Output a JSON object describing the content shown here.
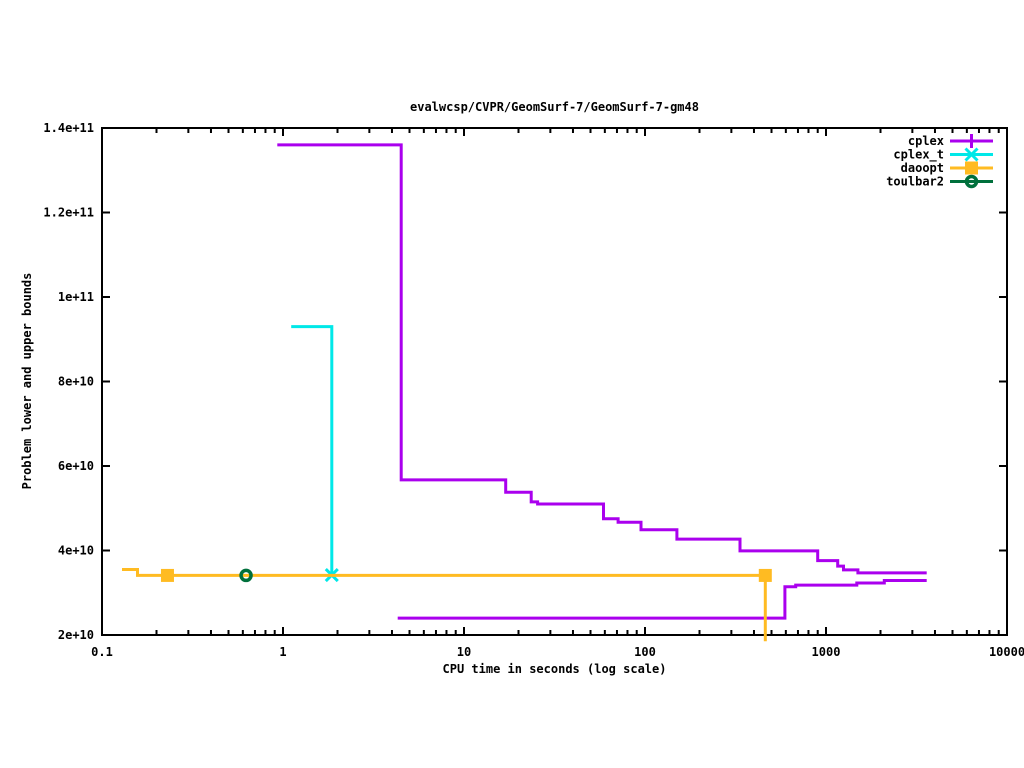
{
  "window": {
    "background": "#ffffff"
  },
  "chart_data": {
    "type": "line",
    "title": "evalwcsp/CVPR/GeomSurf-7/GeomSurf-7-gm48",
    "xlabel": "CPU time in seconds (log scale)",
    "ylabel": "Problem lower and upper bounds",
    "x_scale": "log",
    "xlim": [
      0.1,
      10000
    ],
    "ylim": [
      20000000000.0,
      140000000000.0
    ],
    "grid": false,
    "legend_position": "top-right-inside",
    "x_ticks": [
      {
        "v": 0.1,
        "label": "0.1"
      },
      {
        "v": 1,
        "label": "1"
      },
      {
        "v": 10,
        "label": "10"
      },
      {
        "v": 100,
        "label": "100"
      },
      {
        "v": 1000,
        "label": "1000"
      },
      {
        "v": 10000,
        "label": "10000"
      }
    ],
    "y_ticks": [
      {
        "v": 20000000000.0,
        "label": "2e+10"
      },
      {
        "v": 40000000000.0,
        "label": "4e+10"
      },
      {
        "v": 60000000000.0,
        "label": "6e+10"
      },
      {
        "v": 80000000000.0,
        "label": "8e+10"
      },
      {
        "v": 100000000000.0,
        "label": "1e+11"
      },
      {
        "v": 120000000000.0,
        "label": "1.2e+11"
      },
      {
        "v": 140000000000.0,
        "label": "1.4e+11"
      }
    ],
    "series": [
      {
        "name": "cplex",
        "color": "#aa00ee",
        "marker": "plus",
        "lines": [
          {
            "role": "upper-bound",
            "points": [
              [
                0.93,
                136000000000.0
              ],
              [
                4.5,
                136000000000.0
              ],
              [
                4.5,
                56700000000.0
              ],
              [
                17,
                56700000000.0
              ],
              [
                17,
                53800000000.0
              ],
              [
                23.5,
                53800000000.0
              ],
              [
                23.5,
                51500000000.0
              ],
              [
                25.5,
                51500000000.0
              ],
              [
                25.5,
                51000000000.0
              ],
              [
                59,
                51000000000.0
              ],
              [
                59,
                47500000000.0
              ],
              [
                71,
                47500000000.0
              ],
              [
                71,
                46700000000.0
              ],
              [
                95,
                46700000000.0
              ],
              [
                95,
                44900000000.0
              ],
              [
                150,
                44900000000.0
              ],
              [
                150,
                42700000000.0
              ],
              [
                335,
                42700000000.0
              ],
              [
                335,
                39900000000.0
              ],
              [
                900,
                39900000000.0
              ],
              [
                900,
                37600000000.0
              ],
              [
                1160,
                37600000000.0
              ],
              [
                1160,
                36300000000.0
              ],
              [
                1250,
                36300000000.0
              ],
              [
                1250,
                35400000000.0
              ],
              [
                1500,
                35400000000.0
              ],
              [
                1500,
                34700000000.0
              ],
              [
                3600,
                34700000000.0
              ]
            ]
          },
          {
            "role": "lower-bound",
            "points": [
              [
                4.3,
                24000000000.0
              ],
              [
                593,
                24000000000.0
              ],
              [
                593,
                31400000000.0
              ],
              [
                680,
                31400000000.0
              ],
              [
                680,
                31800000000.0
              ],
              [
                1480,
                31800000000.0
              ],
              [
                1480,
                32300000000.0
              ],
              [
                2100,
                32300000000.0
              ],
              [
                2100,
                32900000000.0
              ],
              [
                3600,
                32900000000.0
              ]
            ]
          }
        ],
        "markers": []
      },
      {
        "name": "cplex_t",
        "color": "#00e8e8",
        "marker": "cross",
        "lines": [
          {
            "role": "upper-bound",
            "points": [
              [
                1.11,
                93000000000.0
              ],
              [
                1.86,
                93000000000.0
              ],
              [
                1.86,
                34200000000.0
              ]
            ]
          }
        ],
        "markers": [
          [
            1.86,
            34200000000.0
          ]
        ]
      },
      {
        "name": "daoopt",
        "color": "#ffbb22",
        "marker": "square",
        "lines": [
          {
            "role": "bound",
            "points": [
              [
                0.129,
                35500000000.0
              ],
              [
                0.157,
                35500000000.0
              ],
              [
                0.157,
                34100000000.0
              ],
              [
                462,
                34100000000.0
              ],
              [
                462,
                18500000000.0
              ]
            ]
          }
        ],
        "markers": [
          [
            0.23,
            34100000000.0
          ],
          [
            462,
            34100000000.0
          ]
        ]
      },
      {
        "name": "toulbar2",
        "color": "#00703c",
        "marker": "circle",
        "lines": [],
        "markers": [
          [
            0.625,
            34100000000.0
          ]
        ]
      }
    ]
  }
}
